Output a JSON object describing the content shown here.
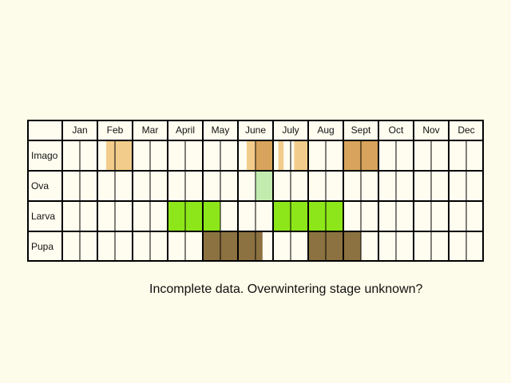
{
  "months": [
    "Jan",
    "Feb",
    "Mar",
    "April",
    "May",
    "June",
    "July",
    "Aug",
    "Sept",
    "Oct",
    "Nov",
    "Dec"
  ],
  "stages": [
    {
      "label": "Imago",
      "color": "#d8a35c",
      "light_color": "#f2cc8a",
      "periods": [
        {
          "from": 2.25,
          "to": 2.5,
          "shade": "light"
        },
        {
          "from": 2.5,
          "to": 3.0,
          "shade": "light"
        },
        {
          "from": 6.25,
          "to": 6.5,
          "shade": "light"
        },
        {
          "from": 6.5,
          "to": 7.0,
          "shade": "dark"
        },
        {
          "from": 7.15,
          "to": 7.3,
          "shade": "light"
        },
        {
          "from": 7.6,
          "to": 8.0,
          "shade": "light"
        },
        {
          "from": 9.0,
          "to": 10.0,
          "shade": "dark"
        }
      ]
    },
    {
      "label": "Ova",
      "color": "#c2ebb0",
      "periods": [
        {
          "from": 6.5,
          "to": 7.0
        }
      ]
    },
    {
      "label": "Larva",
      "color": "#8ce619",
      "periods": [
        {
          "from": 4.0,
          "to": 5.5
        },
        {
          "from": 7.0,
          "to": 9.0
        }
      ]
    },
    {
      "label": "Pupa",
      "color": "#8c7240",
      "periods": [
        {
          "from": 5.0,
          "to": 6.7
        },
        {
          "from": 8.0,
          "to": 9.5
        }
      ]
    }
  ],
  "note": "Incomplete data. Overwintering stage unknown?"
}
